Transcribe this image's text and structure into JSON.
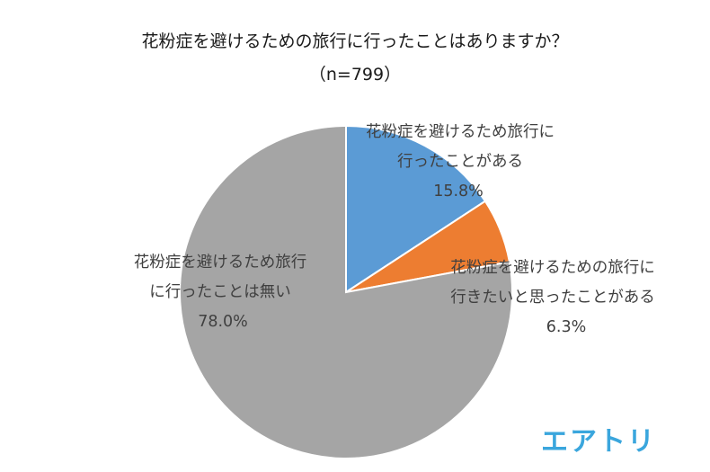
{
  "title": {
    "line1": "花粉症を避けるための旅行に行ったことはありますか？",
    "line2": "（n=799）"
  },
  "chart_data": {
    "type": "pie",
    "slices": [
      {
        "label_lines": [
          "花粉症を避けるため旅行に",
          "行ったことがある"
        ],
        "value": 15.8,
        "value_label": "15.8%",
        "color": "#5b9bd5"
      },
      {
        "label_lines": [
          "花粉症を避けるための旅行に",
          "行きたいと思ったことがある"
        ],
        "value": 6.3,
        "value_label": "6.3%",
        "color": "#ed7d31"
      },
      {
        "label_lines": [
          "花粉症を避けるため旅行",
          "に行ったことは無い"
        ],
        "value": 78.0,
        "value_label": "78.0%",
        "color": "#a5a5a5"
      }
    ]
  },
  "logo": {
    "text": "エアトリ",
    "color": "#3aa6dd"
  }
}
